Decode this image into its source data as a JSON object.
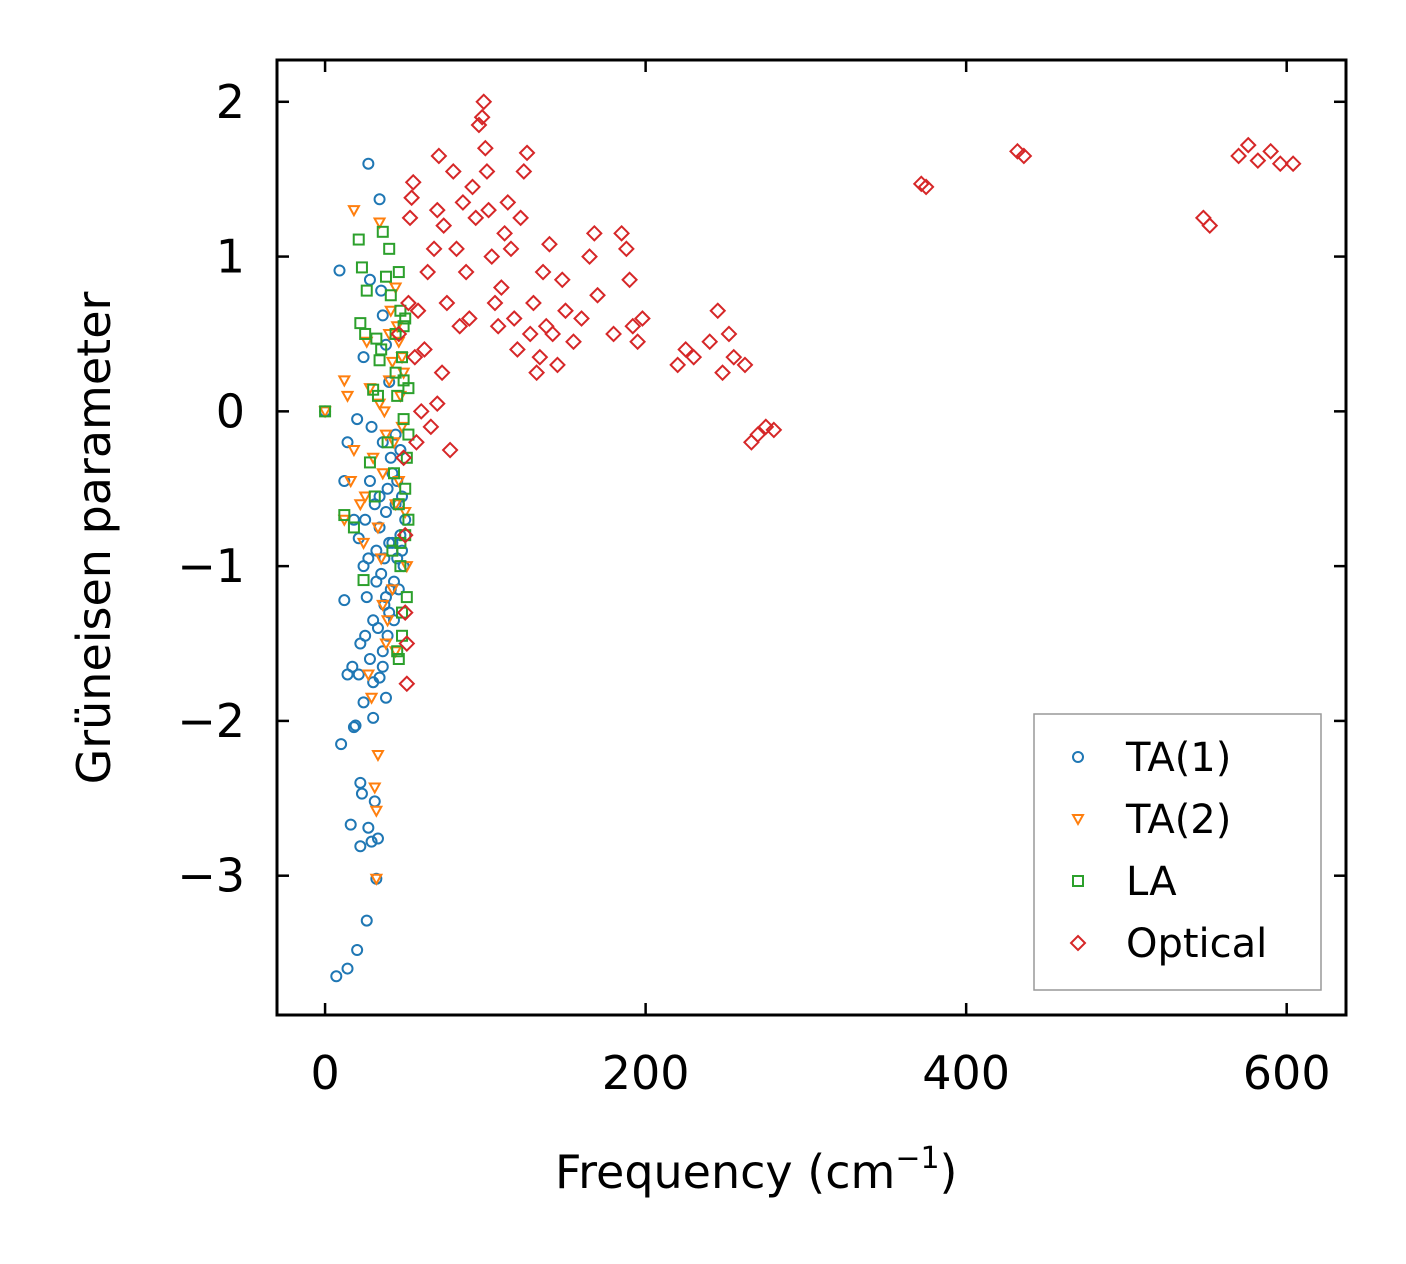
{
  "chart_data": {
    "type": "scatter",
    "title": "",
    "xlabel": "Frequency (cm",
    "xlabel_sup": "−1",
    "xlabel_close": ")",
    "ylabel": "Grüneisen parameter",
    "xlim": [
      -30,
      637
    ],
    "ylim": [
      -3.9,
      2.27
    ],
    "xticks": [
      0,
      200,
      400,
      600
    ],
    "xtick_labels": [
      "0",
      "200",
      "400",
      "600"
    ],
    "yticks": [
      2,
      1,
      0,
      -1,
      -2,
      -3
    ],
    "ytick_labels": [
      "2",
      "1",
      "0",
      "−1",
      "−2",
      "−3"
    ],
    "grid": false,
    "legend_position": "lower-right",
    "series": [
      {
        "name": "TA(1)",
        "marker": "circle",
        "color": "#1f77b4",
        "points": [
          [
            0,
            0
          ],
          [
            7,
            -3.65
          ],
          [
            9,
            0.91
          ],
          [
            10,
            -2.15
          ],
          [
            12,
            -1.22
          ],
          [
            14,
            -0.2
          ],
          [
            14,
            -1.7
          ],
          [
            14,
            -3.6
          ],
          [
            16,
            -2.67
          ],
          [
            17,
            -1.65
          ],
          [
            18,
            -2.04
          ],
          [
            19,
            -2.03
          ],
          [
            20,
            -0.05
          ],
          [
            21,
            -1.7
          ],
          [
            22,
            -1.5
          ],
          [
            20,
            -3.48
          ],
          [
            22,
            -2.81
          ],
          [
            22,
            -2.4
          ],
          [
            23,
            -2.47
          ],
          [
            24,
            -1.88
          ],
          [
            24,
            0.35
          ],
          [
            25,
            -0.7
          ],
          [
            26,
            -3.29
          ],
          [
            27,
            1.6
          ],
          [
            27,
            -2.69
          ],
          [
            28,
            0.85
          ],
          [
            29,
            -2.78
          ],
          [
            30,
            -1.98
          ],
          [
            31,
            -2.52
          ],
          [
            32,
            -3.02
          ],
          [
            33,
            -2.76
          ],
          [
            34,
            1.37
          ],
          [
            34,
            -1.72
          ],
          [
            35,
            0.78
          ],
          [
            36,
            0.62
          ],
          [
            36,
            -1.55
          ],
          [
            37,
            -0.95
          ],
          [
            38,
            0.43
          ],
          [
            38,
            -1.2
          ],
          [
            39,
            -0.5
          ],
          [
            40,
            0.19
          ],
          [
            40,
            -1.3
          ],
          [
            41,
            -0.3
          ],
          [
            42,
            -0.85
          ],
          [
            43,
            -1.1
          ],
          [
            44,
            -0.6
          ],
          [
            45,
            -0.95
          ],
          [
            46,
            -1.15
          ],
          [
            47,
            -0.8
          ],
          [
            48,
            -0.55
          ],
          [
            49,
            -1.0
          ],
          [
            50,
            -0.7
          ],
          [
            12,
            -0.45
          ],
          [
            18,
            -0.7
          ],
          [
            21,
            -0.82
          ],
          [
            24,
            -1.0
          ],
          [
            26,
            -1.2
          ],
          [
            28,
            -0.45
          ],
          [
            29,
            -0.1
          ],
          [
            30,
            -1.35
          ],
          [
            31,
            -0.6
          ],
          [
            32,
            -0.9
          ],
          [
            33,
            -1.4
          ],
          [
            34,
            -0.75
          ],
          [
            35,
            -1.05
          ],
          [
            36,
            -0.2
          ],
          [
            37,
            -1.25
          ],
          [
            38,
            -0.65
          ],
          [
            39,
            -1.45
          ],
          [
            40,
            -0.85
          ],
          [
            41,
            -1.15
          ],
          [
            42,
            -0.4
          ],
          [
            43,
            -1.35
          ],
          [
            44,
            -0.15
          ],
          [
            45,
            -0.45
          ],
          [
            46,
            -0.6
          ],
          [
            47,
            -0.25
          ],
          [
            48,
            -0.9
          ],
          [
            28,
            -1.6
          ],
          [
            30,
            -1.75
          ],
          [
            32,
            -1.1
          ],
          [
            34,
            -0.55
          ],
          [
            36,
            -1.65
          ],
          [
            38,
            -1.85
          ],
          [
            25,
            -1.45
          ],
          [
            27,
            -0.95
          ]
        ]
      },
      {
        "name": "TA(2)",
        "marker": "triangle-down",
        "color": "#ff7f0e",
        "points": [
          [
            0,
            0
          ],
          [
            12,
            0.2
          ],
          [
            14,
            0.1
          ],
          [
            12,
            -0.7
          ],
          [
            16,
            -0.45
          ],
          [
            18,
            -0.25
          ],
          [
            18,
            1.3
          ],
          [
            22,
            -0.6
          ],
          [
            24,
            -0.85
          ],
          [
            26,
            0.45
          ],
          [
            28,
            0.15
          ],
          [
            30,
            -0.3
          ],
          [
            31,
            -2.43
          ],
          [
            32,
            -2.58
          ],
          [
            32,
            -3.02
          ],
          [
            33,
            -2.22
          ],
          [
            34,
            1.22
          ],
          [
            36,
            -0.4
          ],
          [
            38,
            -0.15
          ],
          [
            39,
            -1.35
          ],
          [
            40,
            0.5
          ],
          [
            41,
            0.65
          ],
          [
            42,
            0.32
          ],
          [
            43,
            -0.2
          ],
          [
            44,
            -1.55
          ],
          [
            45,
            0.55
          ],
          [
            46,
            -0.45
          ],
          [
            47,
            0.1
          ],
          [
            48,
            0.35
          ],
          [
            49,
            0.25
          ],
          [
            50,
            -0.65
          ],
          [
            51,
            -1.0
          ],
          [
            25,
            -0.55
          ],
          [
            27,
            -1.7
          ],
          [
            29,
            -1.85
          ],
          [
            35,
            -0.95
          ],
          [
            37,
            0.0
          ],
          [
            33,
            -0.75
          ],
          [
            42,
            -1.15
          ],
          [
            44,
            0.8
          ],
          [
            46,
            0.45
          ],
          [
            40,
            0.2
          ],
          [
            38,
            -1.5
          ],
          [
            36,
            -1.25
          ],
          [
            34,
            0.05
          ],
          [
            48,
            -0.1
          ],
          [
            44,
            -0.6
          ]
        ]
      },
      {
        "name": "LA",
        "marker": "square",
        "color": "#2ca02c",
        "points": [
          [
            0,
            0
          ],
          [
            12,
            -0.67
          ],
          [
            18,
            -0.75
          ],
          [
            21,
            1.11
          ],
          [
            22,
            0.57
          ],
          [
            23,
            0.93
          ],
          [
            24,
            -1.09
          ],
          [
            25,
            0.5
          ],
          [
            26,
            0.78
          ],
          [
            28,
            -0.33
          ],
          [
            30,
            0.14
          ],
          [
            32,
            0.47
          ],
          [
            33,
            0.1
          ],
          [
            34,
            0.33
          ],
          [
            36,
            1.16
          ],
          [
            38,
            0.87
          ],
          [
            40,
            1.05
          ],
          [
            42,
            -0.9
          ],
          [
            44,
            0.5
          ],
          [
            45,
            -1.55
          ],
          [
            46,
            0.9
          ],
          [
            46,
            -1.6
          ],
          [
            47,
            0.65
          ],
          [
            48,
            -1.3
          ],
          [
            49,
            0.2
          ],
          [
            50,
            -0.5
          ],
          [
            51,
            -0.3
          ],
          [
            52,
            -0.15
          ],
          [
            50,
            0.6
          ],
          [
            48,
            0.35
          ],
          [
            47,
            -0.85
          ],
          [
            49,
            -0.05
          ],
          [
            51,
            -1.2
          ],
          [
            45,
            0.1
          ],
          [
            43,
            -0.4
          ],
          [
            44,
            0.25
          ],
          [
            46,
            -0.6
          ],
          [
            48,
            -1.45
          ],
          [
            50,
            -0.8
          ],
          [
            52,
            0.15
          ],
          [
            41,
            0.75
          ],
          [
            39,
            -0.2
          ],
          [
            35,
            0.4
          ],
          [
            31,
            -0.55
          ],
          [
            47,
            -1.0
          ],
          [
            49,
            0.55
          ],
          [
            52,
            -0.7
          ]
        ]
      },
      {
        "name": "Optical",
        "marker": "diamond",
        "color": "#d62728",
        "points": [
          [
            46,
            0.5
          ],
          [
            49,
            -0.3
          ],
          [
            50,
            -0.8
          ],
          [
            50,
            -1.3
          ],
          [
            51,
            -1.5
          ],
          [
            51,
            -1.76
          ],
          [
            52,
            0.7
          ],
          [
            53,
            1.25
          ],
          [
            54,
            1.38
          ],
          [
            55,
            1.48
          ],
          [
            56,
            0.35
          ],
          [
            57,
            -0.2
          ],
          [
            58,
            0.65
          ],
          [
            60,
            0.0
          ],
          [
            62,
            0.4
          ],
          [
            64,
            0.9
          ],
          [
            66,
            -0.1
          ],
          [
            68,
            1.05
          ],
          [
            70,
            1.3
          ],
          [
            70,
            0.05
          ],
          [
            71,
            1.65
          ],
          [
            73,
            0.25
          ],
          [
            74,
            1.2
          ],
          [
            76,
            0.7
          ],
          [
            78,
            -0.25
          ],
          [
            80,
            1.55
          ],
          [
            82,
            1.05
          ],
          [
            84,
            0.55
          ],
          [
            86,
            1.35
          ],
          [
            88,
            0.9
          ],
          [
            90,
            0.6
          ],
          [
            92,
            1.45
          ],
          [
            94,
            1.25
          ],
          [
            96,
            1.85
          ],
          [
            98,
            1.9
          ],
          [
            99,
            2.0
          ],
          [
            100,
            1.7
          ],
          [
            101,
            1.55
          ],
          [
            102,
            1.3
          ],
          [
            104,
            1.0
          ],
          [
            106,
            0.7
          ],
          [
            108,
            0.55
          ],
          [
            110,
            0.8
          ],
          [
            112,
            1.15
          ],
          [
            114,
            1.35
          ],
          [
            116,
            1.05
          ],
          [
            118,
            0.6
          ],
          [
            120,
            0.4
          ],
          [
            122,
            1.25
          ],
          [
            124,
            1.55
          ],
          [
            126,
            1.67
          ],
          [
            128,
            0.5
          ],
          [
            130,
            0.7
          ],
          [
            132,
            0.25
          ],
          [
            134,
            0.35
          ],
          [
            136,
            0.9
          ],
          [
            138,
            0.55
          ],
          [
            140,
            1.08
          ],
          [
            142,
            0.5
          ],
          [
            145,
            0.3
          ],
          [
            148,
            0.85
          ],
          [
            150,
            0.65
          ],
          [
            155,
            0.45
          ],
          [
            160,
            0.6
          ],
          [
            165,
            1.0
          ],
          [
            168,
            1.15
          ],
          [
            170,
            0.75
          ],
          [
            180,
            0.5
          ],
          [
            185,
            1.15
          ],
          [
            188,
            1.05
          ],
          [
            190,
            0.85
          ],
          [
            192,
            0.55
          ],
          [
            195,
            0.45
          ],
          [
            198,
            0.6
          ],
          [
            220,
            0.3
          ],
          [
            225,
            0.4
          ],
          [
            230,
            0.35
          ],
          [
            240,
            0.45
          ],
          [
            245,
            0.65
          ],
          [
            248,
            0.25
          ],
          [
            252,
            0.5
          ],
          [
            255,
            0.35
          ],
          [
            262,
            0.3
          ],
          [
            266,
            -0.2
          ],
          [
            270,
            -0.15
          ],
          [
            275,
            -0.1
          ],
          [
            280,
            -0.12
          ],
          [
            372,
            1.47
          ],
          [
            375,
            1.45
          ],
          [
            432,
            1.68
          ],
          [
            436,
            1.65
          ],
          [
            548,
            1.25
          ],
          [
            552,
            1.2
          ],
          [
            570,
            1.65
          ],
          [
            576,
            1.72
          ],
          [
            582,
            1.62
          ],
          [
            590,
            1.68
          ],
          [
            596,
            1.6
          ],
          [
            604,
            1.6
          ]
        ]
      }
    ]
  }
}
